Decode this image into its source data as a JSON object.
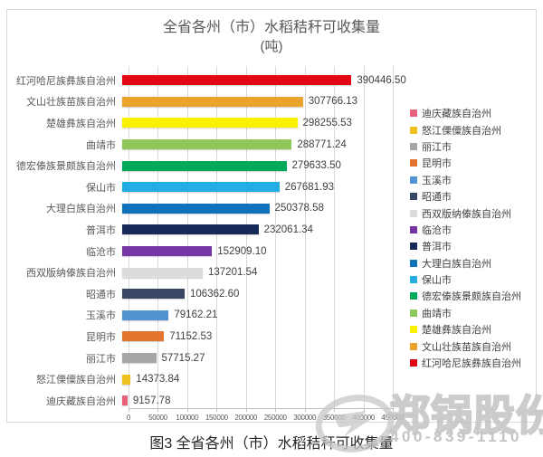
{
  "chart": {
    "title_line1": "全省各州（市）水稻秸秆可收集量",
    "title_line2": "(吨)"
  },
  "chart_data": {
    "type": "bar",
    "orientation": "horizontal",
    "title": "全省各州（市）水稻秸秆可收集量 (吨)",
    "xlabel": "",
    "ylabel": "",
    "xlim": [
      0,
      450000
    ],
    "x_ticks": [
      0,
      50000,
      100000,
      150000,
      200000,
      250000,
      300000,
      350000,
      400000,
      450000
    ],
    "grid": true,
    "categories": [
      "红河哈尼族彝族自治州",
      "文山壮族苗族自治州",
      "楚雄彝族自治州",
      "曲靖市",
      "德宏傣族景颇族自治州",
      "保山市",
      "大理白族自治州",
      "普洱市",
      "临沧市",
      "西双版纳傣族自治州",
      "昭通市",
      "玉溪市",
      "昆明市",
      "丽江市",
      "怒江傈僳族自治州",
      "迪庆藏族自治州"
    ],
    "values": [
      390446.5,
      307766.13,
      298255.53,
      288771.24,
      279633.5,
      267681.93,
      250378.58,
      232061.34,
      152909.1,
      137201.54,
      106362.6,
      79162.21,
      71152.53,
      57715.27,
      14373.84,
      9157.78
    ],
    "value_labels": [
      "390446.50",
      "307766.13",
      "298255.53",
      "288771.24",
      "279633.50",
      "267681.93",
      "250378.58",
      "232061.34",
      "152909.10",
      "137201.54",
      "106362.60",
      "79162.21",
      "71152.53",
      "57715.27",
      "14373.84",
      "9157.78"
    ],
    "bar_colors": [
      "#e30613",
      "#eaa42d",
      "#fcf003",
      "#90c75a",
      "#00a859",
      "#22aee5",
      "#1072ba",
      "#152a56",
      "#7436a4",
      "#dcdcdc",
      "#3a4764",
      "#5094d0",
      "#e1752f",
      "#a6a6a6",
      "#efc020",
      "#e8607a"
    ],
    "legend_position": "right",
    "legend": [
      {
        "label": "迪庆藏族自治州",
        "color": "#e8607a"
      },
      {
        "label": "怒江傈僳族自治州",
        "color": "#efc020"
      },
      {
        "label": "丽江市",
        "color": "#a6a6a6"
      },
      {
        "label": "昆明市",
        "color": "#e1752f"
      },
      {
        "label": "玉溪市",
        "color": "#5094d0"
      },
      {
        "label": "昭通市",
        "color": "#3a4764"
      },
      {
        "label": "西双版纳傣族自治州",
        "color": "#dcdcdc"
      },
      {
        "label": "临沧市",
        "color": "#7436a4"
      },
      {
        "label": "普洱市",
        "color": "#152a56"
      },
      {
        "label": "大理白族自治州",
        "color": "#1072ba"
      },
      {
        "label": "保山市",
        "color": "#22aee5"
      },
      {
        "label": "德宏傣族景颇族自治州",
        "color": "#00a859"
      },
      {
        "label": "曲靖市",
        "color": "#90c75a"
      },
      {
        "label": "楚雄彝族自治州",
        "color": "#fcf003"
      },
      {
        "label": "文山壮族苗族自治州",
        "color": "#eaa42d"
      },
      {
        "label": "红河哈尼族彝族自治州",
        "color": "#e30613"
      }
    ]
  },
  "caption": "图3 全省各州（市）水稻秸秆可收集量",
  "watermark": {
    "brand": "郑锅股份",
    "phone": "400-839-1110",
    "color": "#bdbdbd"
  }
}
